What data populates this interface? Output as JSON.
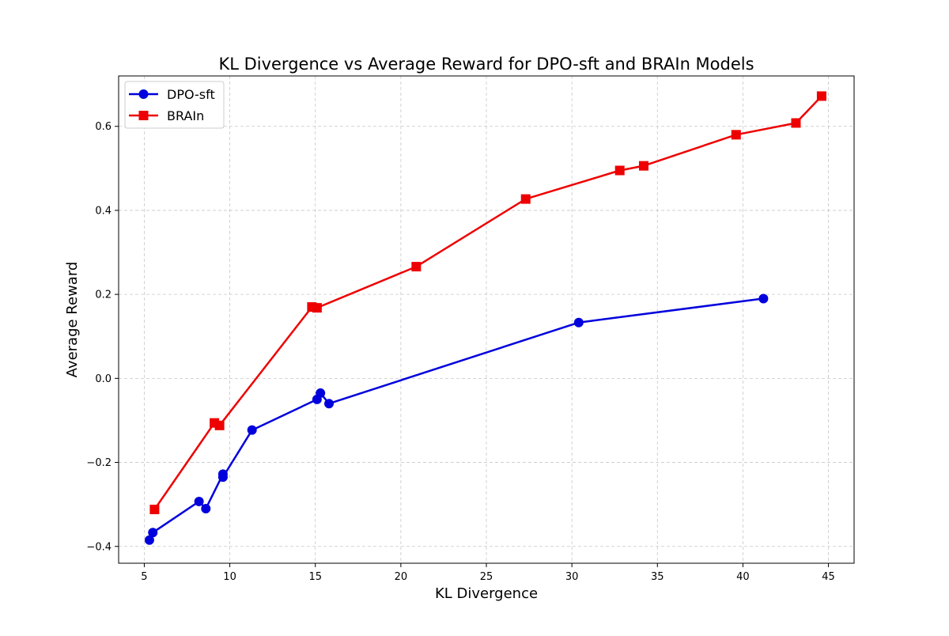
{
  "chart_data": {
    "type": "line",
    "title": "KL Divergence vs Average Reward for DPO-sft and BRAIn Models",
    "xlabel": "KL Divergence",
    "ylabel": "Average Reward",
    "xlim": [
      3.5,
      46.5
    ],
    "ylim": [
      -0.44,
      0.72
    ],
    "xticks": [
      5,
      10,
      15,
      20,
      25,
      30,
      35,
      40,
      45
    ],
    "yticks": [
      -0.4,
      -0.2,
      0.0,
      0.2,
      0.4,
      0.6
    ],
    "xtick_labels": [
      "5",
      "10",
      "15",
      "20",
      "25",
      "30",
      "35",
      "40",
      "45"
    ],
    "ytick_labels": [
      "−0.4",
      "−0.2",
      "0.0",
      "0.2",
      "0.4",
      "0.6"
    ],
    "grid": true,
    "legend_position": "top-left",
    "series": [
      {
        "name": "DPO-sft",
        "color": "#0000dd",
        "marker": "circle",
        "points": [
          [
            5.3,
            -0.385
          ],
          [
            5.5,
            -0.367
          ],
          [
            8.2,
            -0.293
          ],
          [
            8.6,
            -0.31
          ],
          [
            9.6,
            -0.228
          ],
          [
            9.6,
            -0.235
          ],
          [
            11.3,
            -0.123
          ],
          [
            15.1,
            -0.05
          ],
          [
            15.3,
            -0.035
          ],
          [
            15.8,
            -0.06
          ],
          [
            30.4,
            0.133
          ],
          [
            41.2,
            0.19
          ]
        ]
      },
      {
        "name": "BRAIn",
        "color": "#ee0000",
        "marker": "square",
        "points": [
          [
            5.6,
            -0.312
          ],
          [
            9.1,
            -0.106
          ],
          [
            9.4,
            -0.112
          ],
          [
            14.8,
            0.17
          ],
          [
            15.1,
            0.168
          ],
          [
            20.9,
            0.266
          ],
          [
            27.3,
            0.427
          ],
          [
            32.8,
            0.495
          ],
          [
            34.2,
            0.506
          ],
          [
            39.6,
            0.58
          ],
          [
            43.1,
            0.608
          ],
          [
            44.6,
            0.672
          ]
        ]
      }
    ]
  }
}
